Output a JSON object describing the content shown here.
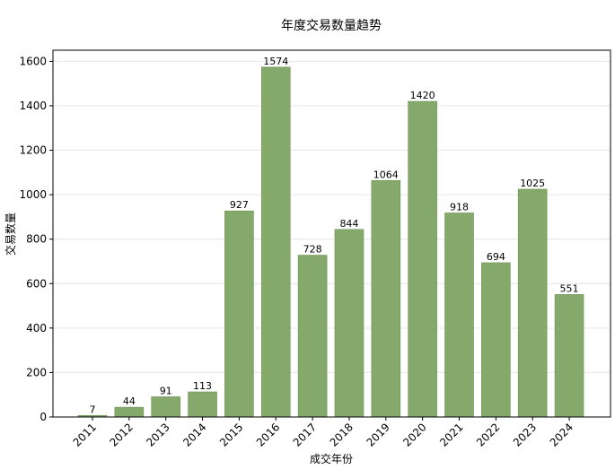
{
  "chart_data": {
    "type": "bar",
    "title": "年度交易数量趋势",
    "xlabel": "成交年份",
    "ylabel": "交易数量",
    "categories": [
      "2011",
      "2012",
      "2013",
      "2014",
      "2015",
      "2016",
      "2017",
      "2018",
      "2019",
      "2020",
      "2021",
      "2022",
      "2023",
      "2024"
    ],
    "values": [
      7,
      44,
      91,
      113,
      927,
      1574,
      728,
      844,
      1064,
      1420,
      918,
      694,
      1025,
      551
    ],
    "ylim": [
      0,
      1650
    ],
    "yticks": [
      0,
      200,
      400,
      600,
      800,
      1000,
      1200,
      1400,
      1600
    ],
    "grid": "horizontal",
    "bar_color": "#85a96b",
    "bar_edge_color": "#6f9457",
    "data_labels": true
  }
}
